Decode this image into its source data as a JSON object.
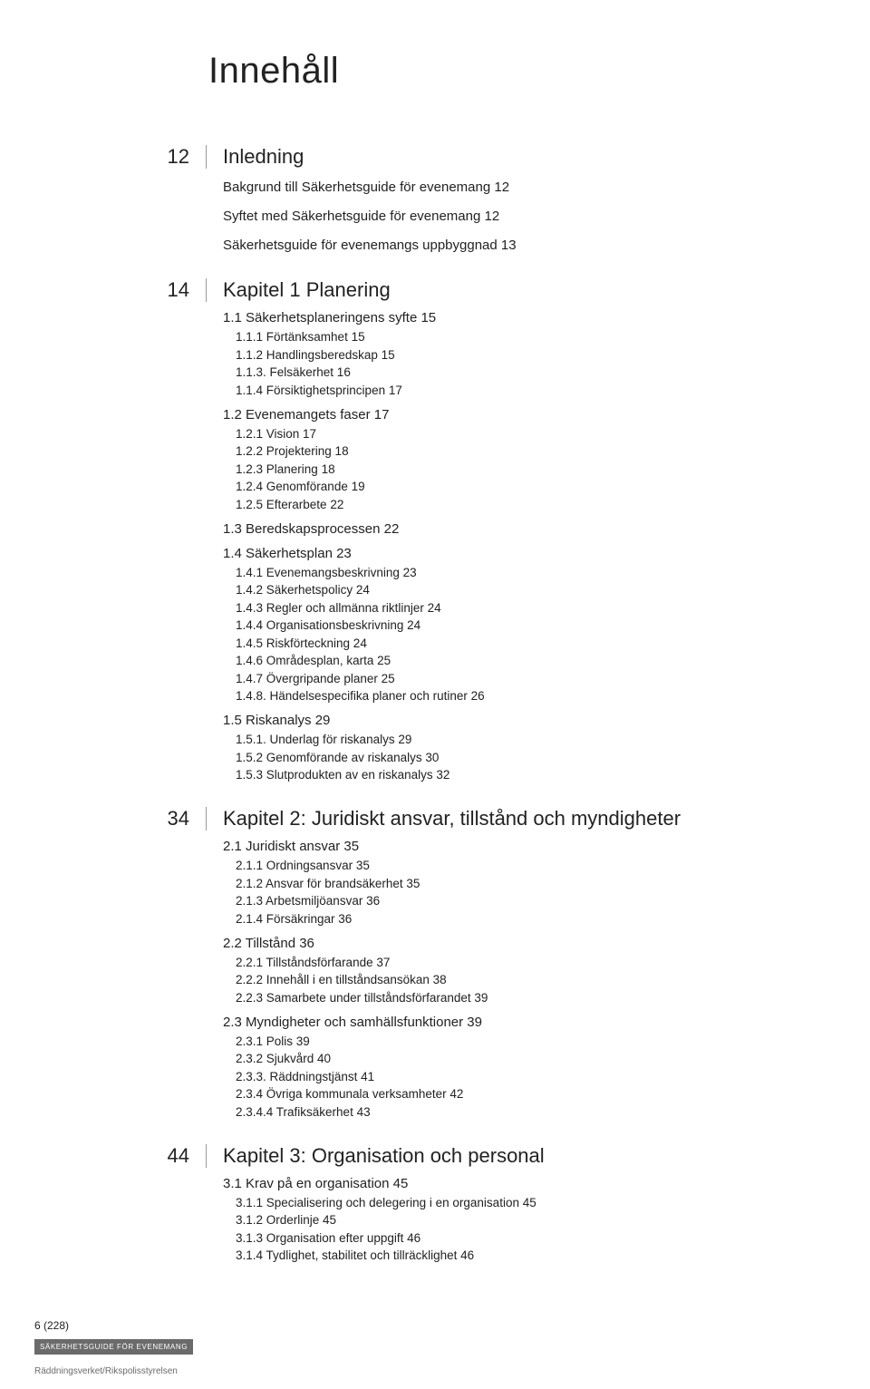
{
  "colors": {
    "text": "#1a1a1a",
    "muted": "#6b6b6b",
    "rule": "#999999",
    "badge_bg": "#6b6b6b",
    "badge_fg": "#ffffff",
    "background": "#ffffff"
  },
  "typography": {
    "title_fontsize": 40,
    "chapter_fontsize": 22,
    "section_fontsize": 15,
    "subsection_fontsize": 13.5,
    "footer_fontsize": 10
  },
  "page_title": "Innehåll",
  "footer": {
    "page_indicator": "6 (228)",
    "badge": "SÄKERHETSGUIDE FÖR EVENEMANG",
    "org": "Räddningsverket/Rikspolisstyrelsen"
  },
  "toc": [
    {
      "type": "chapter",
      "num": "12",
      "title": "Inledning",
      "intro": [
        "Bakgrund till Säkerhetsguide för evenemang 12",
        "Syftet med Säkerhetsguide för evenemang 12",
        "Säkerhetsguide för evenemangs uppbyggnad 13"
      ]
    },
    {
      "type": "chapter",
      "num": "14",
      "title": "Kapitel 1 Planering",
      "sections": [
        {
          "title": "1.1 Säkerhetsplaneringens syfte  15",
          "subs": [
            "1.1.1 Förtänksamhet 15",
            "1.1.2 Handlingsberedskap 15",
            "1.1.3. Felsäkerhet  16",
            "1.1.4 Försiktighetsprincipen 17"
          ]
        },
        {
          "title": "1.2 Evenemangets faser 17",
          "subs": [
            "1.2.1 Vision 17",
            "1.2.2 Projektering 18",
            "1.2.3 Planering 18",
            "1.2.4 Genomförande 19",
            "1.2.5 Efterarbete 22"
          ]
        },
        {
          "title": "1.3 Beredskapsprocessen 22",
          "subs": []
        },
        {
          "title": "1.4 Säkerhetsplan 23",
          "subs": [
            "1.4.1 Evenemangsbeskrivning  23",
            "1.4.2 Säkerhetspolicy 24",
            "1.4.3 Regler och allmänna riktlinjer  24",
            "1.4.4 Organisationsbeskrivning 24",
            "1.4.5 Riskförteckning  24",
            "1.4.6 Områdesplan, karta  25",
            "1.4.7 Övergripande planer 25",
            "1.4.8. Händelsespecifika planer och rutiner 26"
          ]
        },
        {
          "title": "1.5 Riskanalys 29",
          "subs": [
            "1.5.1. Underlag för riskanalys  29",
            "1.5.2 Genomförande av riskanalys 30",
            "1.5.3 Slutprodukten av en riskanalys 32"
          ]
        }
      ]
    },
    {
      "type": "chapter",
      "num": "34",
      "title": "Kapitel 2: Juridiskt ansvar, tillstånd och myndigheter",
      "sections": [
        {
          "title": "2.1 Juridiskt ansvar 35",
          "subs": [
            "2.1.1 Ordningsansvar 35",
            "2.1.2 Ansvar för brandsäkerhet 35",
            "2.1.3 Arbetsmiljöansvar 36",
            "2.1.4 Försäkringar 36"
          ]
        },
        {
          "title": "2.2 Tillstånd 36",
          "subs": [
            "2.2.1 Tillståndsförfarande 37",
            "2.2.2 Innehåll i en tillståndsansökan 38",
            "2.2.3 Samarbete under tillståndsförfarandet 39"
          ]
        },
        {
          "title": "2.3 Myndigheter och samhällsfunktioner 39",
          "subs": [
            "2.3.1 Polis 39",
            "2.3.2 Sjukvård 40",
            "2.3.3. Räddningstjänst 41",
            "2.3.4 Övriga kommunala verksamheter 42",
            "2.3.4.4 Trafiksäkerhet 43"
          ]
        }
      ]
    },
    {
      "type": "chapter",
      "num": "44",
      "title": "Kapitel 3: Organisation och personal",
      "sections": [
        {
          "title": "3.1 Krav på en organisation 45",
          "subs": [
            "3.1.1 Specialisering och delegering i en organisation 45",
            "3.1.2 Orderlinje 45",
            "3.1.3 Organisation efter uppgift  46",
            "3.1.4 Tydlighet, stabilitet och tillräcklighet 46"
          ]
        }
      ]
    }
  ]
}
